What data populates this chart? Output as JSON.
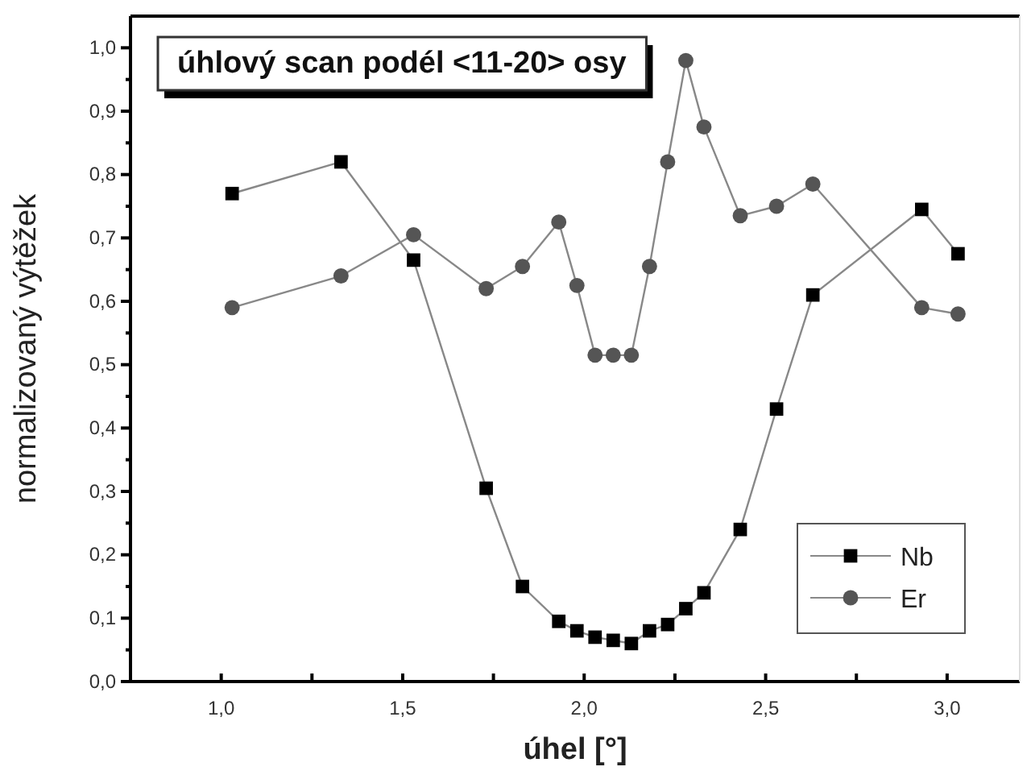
{
  "chart_data": {
    "type": "line",
    "title": "úhlový scan podél <11-20> osy",
    "xlabel": "úhel [°]",
    "ylabel": "normalizovaný výtěžek",
    "line_style": "solid",
    "legend": "bottom right",
    "grid": false,
    "xlim": [
      0.75,
      3.2
    ],
    "ylim": [
      0,
      1.05
    ],
    "xticks": [
      {
        "value": 1.0,
        "label": "1,0"
      },
      {
        "value": 1.25,
        "label": null
      },
      {
        "value": 1.5,
        "label": "1,5"
      },
      {
        "value": 1.75,
        "label": null
      },
      {
        "value": 2.0,
        "label": "2,0"
      },
      {
        "value": 2.25,
        "label": null
      },
      {
        "value": 2.5,
        "label": "2,5"
      },
      {
        "value": 2.75,
        "label": null
      },
      {
        "value": 3.0,
        "label": "3,0"
      }
    ],
    "yticks": [
      {
        "value": 0,
        "label": "0,0"
      },
      {
        "value": 0.1,
        "label": "0,1"
      },
      {
        "value": 0.2,
        "label": "0,2"
      },
      {
        "value": 0.3,
        "label": "0,3"
      },
      {
        "value": 0.4,
        "label": "0,4"
      },
      {
        "value": 0.5,
        "label": "0,5"
      },
      {
        "value": 0.6,
        "label": "0,6"
      },
      {
        "value": 0.7,
        "label": "0,7"
      },
      {
        "value": 0.8,
        "label": "0,8"
      },
      {
        "value": 0.9,
        "label": "0,9"
      },
      {
        "value": 1.0,
        "label": "1,0"
      }
    ],
    "series": [
      {
        "name": "Nb",
        "color": "#000000",
        "marker": "square",
        "x": [
          1.03,
          1.33,
          1.53,
          1.73,
          1.83,
          1.93,
          1.98,
          2.03,
          2.08,
          2.13,
          2.18,
          2.23,
          2.28,
          2.33,
          2.43,
          2.53,
          2.63,
          2.93,
          3.03
        ],
        "values": [
          0.77,
          0.82,
          0.665,
          0.305,
          0.15,
          0.095,
          0.08,
          0.07,
          0.065,
          0.06,
          0.08,
          0.09,
          0.115,
          0.14,
          0.24,
          0.43,
          0.61,
          0.745,
          0.675
        ]
      },
      {
        "name": "Er",
        "color": "#555555",
        "marker": "circle",
        "x": [
          1.03,
          1.33,
          1.53,
          1.73,
          1.83,
          1.93,
          1.98,
          2.03,
          2.08,
          2.13,
          2.18,
          2.23,
          2.28,
          2.33,
          2.43,
          2.53,
          2.63,
          2.93,
          3.03
        ],
        "values": [
          0.59,
          0.64,
          0.705,
          0.62,
          0.655,
          0.725,
          0.625,
          0.515,
          0.515,
          0.515,
          0.655,
          0.82,
          0.98,
          0.875,
          0.735,
          0.75,
          0.785,
          0.59,
          0.58
        ]
      }
    ]
  }
}
